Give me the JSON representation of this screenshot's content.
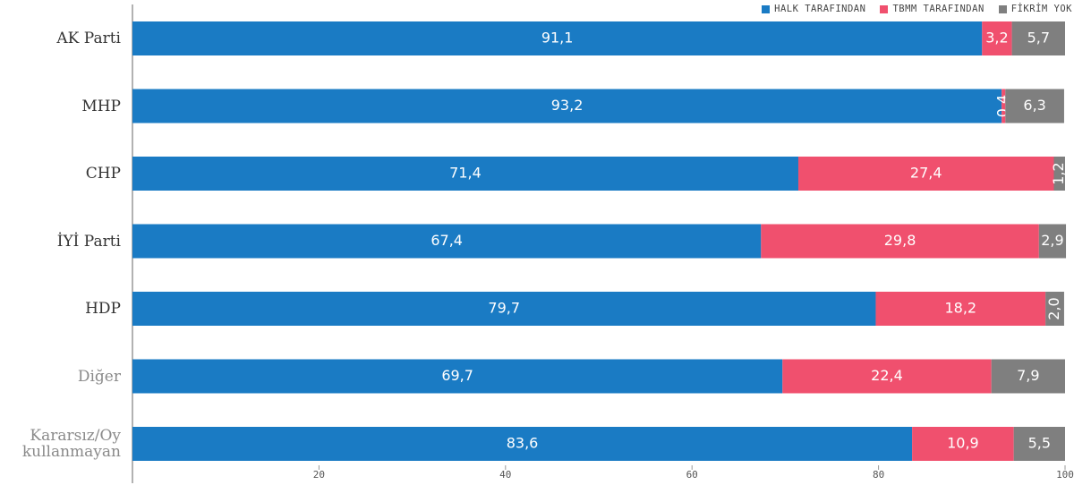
{
  "chart_data": {
    "type": "stacked_barh",
    "categories": [
      "AK Parti",
      "MHP",
      "CHP",
      "İYİ Parti",
      "HDP",
      "Diğer",
      "Kararsız/Oy kullanmayan"
    ],
    "series": [
      {
        "name": "HALK TARAFINDAN",
        "color": "#1a7bc4",
        "values": [
          91.1,
          93.2,
          71.4,
          67.4,
          79.7,
          69.7,
          83.6
        ],
        "value_labels": [
          "91,1",
          "93,2",
          "71,4",
          "67,4",
          "79,7",
          "69,7",
          "83,6"
        ]
      },
      {
        "name": "TBMM TARAFINDAN",
        "color": "#f0506e",
        "values": [
          3.2,
          0.4,
          27.4,
          29.8,
          18.2,
          22.4,
          10.9
        ],
        "value_labels": [
          "3,2",
          "0,4",
          "27,4",
          "29,8",
          "18,2",
          "22,4",
          "10,9"
        ]
      },
      {
        "name": "FİKRİM YOK",
        "color": "#7f7f7f",
        "values": [
          5.7,
          6.3,
          1.2,
          2.9,
          2.0,
          7.9,
          5.5
        ],
        "value_labels": [
          "5,7",
          "6,3",
          "1,2",
          "2,9",
          "2,0",
          "7,9",
          "5,5"
        ]
      }
    ],
    "xlim": [
      0,
      100
    ],
    "xticks": [
      20,
      40,
      60,
      80,
      100
    ],
    "legend": "top-right"
  }
}
